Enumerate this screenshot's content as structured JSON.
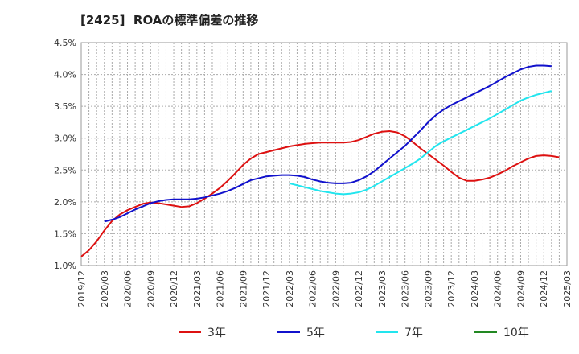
{
  "chart_data": {
    "type": "line",
    "title": "[2425]  ROAの標準偏差の推移",
    "xlabel": "",
    "ylabel": "",
    "ylim": [
      1.0,
      4.5
    ],
    "y_ticks": [
      "1.0%",
      "1.5%",
      "2.0%",
      "2.5%",
      "3.0%",
      "3.5%",
      "4.0%",
      "4.5%"
    ],
    "x_ticks": [
      "2019/12",
      "2020/03",
      "2020/06",
      "2020/09",
      "2020/12",
      "2021/03",
      "2021/06",
      "2021/09",
      "2021/12",
      "2022/03",
      "2022/06",
      "2022/09",
      "2022/12",
      "2023/03",
      "2023/06",
      "2023/09",
      "2023/12",
      "2024/03",
      "2024/06",
      "2024/09",
      "2024/12",
      "2025/03"
    ],
    "grid": true,
    "legend_position": "bottom",
    "series": [
      {
        "name": "3年",
        "color": "#dd1111",
        "points": [
          [
            "2019/12",
            1.14
          ],
          [
            "2020/01",
            1.24
          ],
          [
            "2020/02",
            1.38
          ],
          [
            "2020/03",
            1.55
          ],
          [
            "2020/04",
            1.7
          ],
          [
            "2020/05",
            1.8
          ],
          [
            "2020/06",
            1.87
          ],
          [
            "2020/07",
            1.92
          ],
          [
            "2020/08",
            1.97
          ],
          [
            "2020/09",
            1.99
          ],
          [
            "2020/10",
            1.98
          ],
          [
            "2020/11",
            1.96
          ],
          [
            "2020/12",
            1.94
          ],
          [
            "2021/01",
            1.92
          ],
          [
            "2021/02",
            1.93
          ],
          [
            "2021/03",
            1.98
          ],
          [
            "2021/04",
            2.05
          ],
          [
            "2021/05",
            2.13
          ],
          [
            "2021/06",
            2.22
          ],
          [
            "2021/07",
            2.33
          ],
          [
            "2021/08",
            2.45
          ],
          [
            "2021/09",
            2.58
          ],
          [
            "2021/10",
            2.68
          ],
          [
            "2021/11",
            2.75
          ],
          [
            "2021/12",
            2.78
          ],
          [
            "2022/01",
            2.81
          ],
          [
            "2022/02",
            2.84
          ],
          [
            "2022/03",
            2.87
          ],
          [
            "2022/04",
            2.89
          ],
          [
            "2022/05",
            2.91
          ],
          [
            "2022/06",
            2.92
          ],
          [
            "2022/07",
            2.93
          ],
          [
            "2022/08",
            2.93
          ],
          [
            "2022/09",
            2.93
          ],
          [
            "2022/10",
            2.93
          ],
          [
            "2022/11",
            2.94
          ],
          [
            "2022/12",
            2.97
          ],
          [
            "2023/01",
            3.02
          ],
          [
            "2023/02",
            3.07
          ],
          [
            "2023/03",
            3.1
          ],
          [
            "2023/04",
            3.11
          ],
          [
            "2023/05",
            3.09
          ],
          [
            "2023/06",
            3.03
          ],
          [
            "2023/07",
            2.94
          ],
          [
            "2023/08",
            2.84
          ],
          [
            "2023/09",
            2.75
          ],
          [
            "2023/10",
            2.66
          ],
          [
            "2023/11",
            2.57
          ],
          [
            "2023/12",
            2.47
          ],
          [
            "2024/01",
            2.38
          ],
          [
            "2024/02",
            2.33
          ],
          [
            "2024/03",
            2.33
          ],
          [
            "2024/04",
            2.35
          ],
          [
            "2024/05",
            2.38
          ],
          [
            "2024/06",
            2.43
          ],
          [
            "2024/07",
            2.49
          ],
          [
            "2024/08",
            2.56
          ],
          [
            "2024/09",
            2.62
          ],
          [
            "2024/10",
            2.68
          ],
          [
            "2024/11",
            2.72
          ],
          [
            "2024/12",
            2.73
          ],
          [
            "2025/01",
            2.72
          ],
          [
            "2025/02",
            2.7
          ]
        ]
      },
      {
        "name": "5年",
        "color": "#1111cc",
        "points": [
          [
            "2020/03",
            1.69
          ],
          [
            "2020/04",
            1.72
          ],
          [
            "2020/05",
            1.76
          ],
          [
            "2020/06",
            1.82
          ],
          [
            "2020/07",
            1.88
          ],
          [
            "2020/08",
            1.93
          ],
          [
            "2020/09",
            1.98
          ],
          [
            "2020/10",
            2.01
          ],
          [
            "2020/11",
            2.03
          ],
          [
            "2020/12",
            2.04
          ],
          [
            "2021/01",
            2.04
          ],
          [
            "2021/02",
            2.04
          ],
          [
            "2021/03",
            2.05
          ],
          [
            "2021/04",
            2.07
          ],
          [
            "2021/05",
            2.1
          ],
          [
            "2021/06",
            2.13
          ],
          [
            "2021/07",
            2.17
          ],
          [
            "2021/08",
            2.22
          ],
          [
            "2021/09",
            2.28
          ],
          [
            "2021/10",
            2.34
          ],
          [
            "2021/11",
            2.37
          ],
          [
            "2021/12",
            2.4
          ],
          [
            "2022/01",
            2.41
          ],
          [
            "2022/02",
            2.42
          ],
          [
            "2022/03",
            2.42
          ],
          [
            "2022/04",
            2.41
          ],
          [
            "2022/05",
            2.39
          ],
          [
            "2022/06",
            2.35
          ],
          [
            "2022/07",
            2.32
          ],
          [
            "2022/08",
            2.3
          ],
          [
            "2022/09",
            2.29
          ],
          [
            "2022/10",
            2.29
          ],
          [
            "2022/11",
            2.3
          ],
          [
            "2022/12",
            2.34
          ],
          [
            "2023/01",
            2.4
          ],
          [
            "2023/02",
            2.48
          ],
          [
            "2023/03",
            2.58
          ],
          [
            "2023/04",
            2.68
          ],
          [
            "2023/05",
            2.78
          ],
          [
            "2023/06",
            2.88
          ],
          [
            "2023/07",
            3.0
          ],
          [
            "2023/08",
            3.12
          ],
          [
            "2023/09",
            3.25
          ],
          [
            "2023/10",
            3.36
          ],
          [
            "2023/11",
            3.45
          ],
          [
            "2023/12",
            3.52
          ],
          [
            "2024/01",
            3.58
          ],
          [
            "2024/02",
            3.64
          ],
          [
            "2024/03",
            3.7
          ],
          [
            "2024/04",
            3.76
          ],
          [
            "2024/05",
            3.82
          ],
          [
            "2024/06",
            3.89
          ],
          [
            "2024/07",
            3.96
          ],
          [
            "2024/08",
            4.02
          ],
          [
            "2024/09",
            4.08
          ],
          [
            "2024/10",
            4.12
          ],
          [
            "2024/11",
            4.14
          ],
          [
            "2024/12",
            4.14
          ],
          [
            "2025/01",
            4.13
          ]
        ]
      },
      {
        "name": "7年",
        "color": "#22e5ee",
        "points": [
          [
            "2022/03",
            2.29
          ],
          [
            "2022/04",
            2.26
          ],
          [
            "2022/05",
            2.23
          ],
          [
            "2022/06",
            2.2
          ],
          [
            "2022/07",
            2.17
          ],
          [
            "2022/08",
            2.15
          ],
          [
            "2022/09",
            2.13
          ],
          [
            "2022/10",
            2.12
          ],
          [
            "2022/11",
            2.13
          ],
          [
            "2022/12",
            2.15
          ],
          [
            "2023/01",
            2.19
          ],
          [
            "2023/02",
            2.25
          ],
          [
            "2023/03",
            2.32
          ],
          [
            "2023/04",
            2.39
          ],
          [
            "2023/05",
            2.46
          ],
          [
            "2023/06",
            2.53
          ],
          [
            "2023/07",
            2.6
          ],
          [
            "2023/08",
            2.68
          ],
          [
            "2023/09",
            2.78
          ],
          [
            "2023/10",
            2.88
          ],
          [
            "2023/11",
            2.95
          ],
          [
            "2023/12",
            3.01
          ],
          [
            "2024/01",
            3.07
          ],
          [
            "2024/02",
            3.13
          ],
          [
            "2024/03",
            3.19
          ],
          [
            "2024/04",
            3.25
          ],
          [
            "2024/05",
            3.31
          ],
          [
            "2024/06",
            3.38
          ],
          [
            "2024/07",
            3.45
          ],
          [
            "2024/08",
            3.52
          ],
          [
            "2024/09",
            3.59
          ],
          [
            "2024/10",
            3.64
          ],
          [
            "2024/11",
            3.68
          ],
          [
            "2024/12",
            3.71
          ],
          [
            "2025/01",
            3.74
          ]
        ]
      },
      {
        "name": "10年",
        "color": "#228822",
        "points": []
      }
    ]
  }
}
